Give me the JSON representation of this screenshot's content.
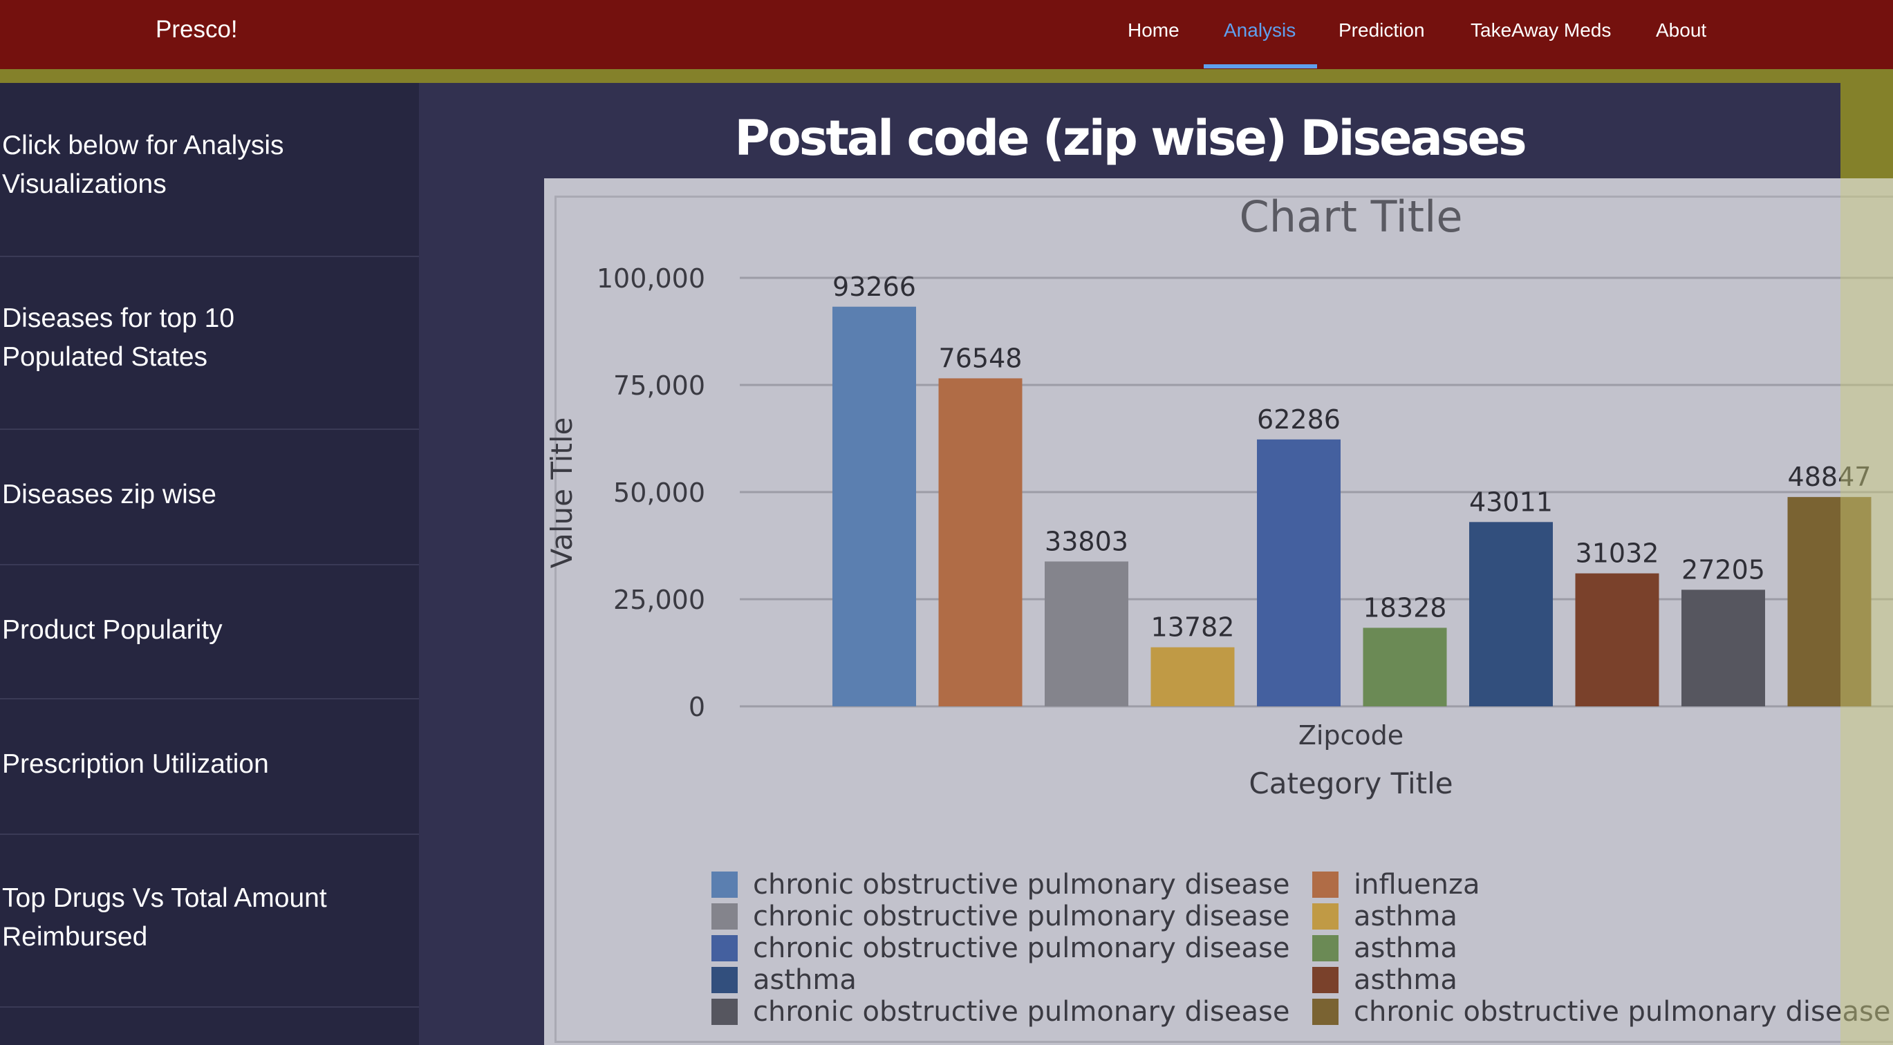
{
  "header": {
    "brand": "Presco!",
    "nav": [
      {
        "label": "Home",
        "active": false
      },
      {
        "label": "Analysis",
        "active": true
      },
      {
        "label": "Prediction",
        "active": false
      },
      {
        "label": "TakeAway Meds",
        "active": false
      },
      {
        "label": "About",
        "active": false
      }
    ]
  },
  "sidebar": {
    "items": [
      {
        "lines": [
          "Click below for Analysis",
          "Visualizations"
        ]
      },
      {
        "lines": [
          "Diseases for top 10",
          "Populated States"
        ]
      },
      {
        "lines": [
          "Diseases zip wise"
        ]
      },
      {
        "lines": [
          "Product Popularity"
        ]
      },
      {
        "lines": [
          "Prescription Utilization"
        ]
      },
      {
        "lines": [
          "Top Drugs Vs Total Amount",
          "Reimbursed"
        ]
      }
    ]
  },
  "main": {
    "title": "Postal code (zip wise) Diseases"
  },
  "colors": {
    "nav_bg": "#74110e",
    "accent": "#5fa0ee",
    "olive": "#84812a",
    "sidebar_bg": "#262640",
    "content_bg": "#323150",
    "chart_bg": "#c2c2cc"
  },
  "chart_data": {
    "type": "bar",
    "title": "Chart Title",
    "xlabel": "Category Title",
    "x_group_label": "Zipcode",
    "ylabel": "Value Title",
    "ylim": [
      0,
      100000
    ],
    "yticks": [
      0,
      25000,
      50000,
      75000,
      100000
    ],
    "ytick_labels": [
      "0",
      "25,000",
      "50,000",
      "75,000",
      "100,000"
    ],
    "grid": true,
    "legend_position": "bottom",
    "series": [
      {
        "name": "chronic obstructive pulmonary disease",
        "value": 93266,
        "color": "#5b7fb0"
      },
      {
        "name": "influenza",
        "value": 76548,
        "color": "#b06c46"
      },
      {
        "name": "chronic obstructive pulmonary disease",
        "value": 33803,
        "color": "#84848c"
      },
      {
        "name": "asthma",
        "value": 13782,
        "color": "#c09a45"
      },
      {
        "name": "chronic obstructive pulmonary disease",
        "value": 62286,
        "color": "#44609f"
      },
      {
        "name": "asthma",
        "value": 18328,
        "color": "#6b8a55"
      },
      {
        "name": "asthma",
        "value": 43011,
        "color": "#324f7d"
      },
      {
        "name": "asthma",
        "value": 31032,
        "color": "#7a412b"
      },
      {
        "name": "chronic obstructive pulmonary disease",
        "value": 27205,
        "color": "#56565f"
      },
      {
        "name": "chronic obstructive pulmonary disease",
        "value": 48847,
        "color": "#7a6332"
      }
    ]
  }
}
